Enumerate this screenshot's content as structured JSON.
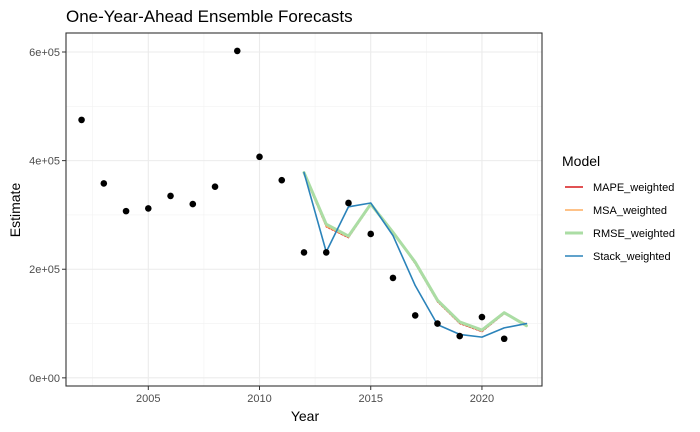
{
  "chart_data": {
    "type": "line",
    "title": "One-Year-Ahead Ensemble Forecasts",
    "xlabel": "Year",
    "ylabel": "Estimate",
    "xlim": [
      2001.3,
      2022.7
    ],
    "ylim": [
      -15000,
      635000
    ],
    "x_ticks": [
      2005,
      2010,
      2015,
      2020
    ],
    "x_tick_labels": [
      "2005",
      "2010",
      "2015",
      "2020"
    ],
    "y_ticks": [
      0,
      200000,
      400000,
      600000
    ],
    "y_tick_labels": [
      "0e+00",
      "2e+05",
      "4e+05",
      "6e+05"
    ],
    "grid": true,
    "legend_title": "Model",
    "legend_position": "right",
    "observed": {
      "x": [
        2002,
        2003,
        2004,
        2005,
        2006,
        2007,
        2008,
        2009,
        2010,
        2011,
        2012,
        2013,
        2014,
        2015,
        2016,
        2017,
        2018,
        2019,
        2020,
        2021
      ],
      "y": [
        475000,
        358000,
        307000,
        312000,
        335000,
        320000,
        352000,
        602000,
        407000,
        364000,
        231000,
        231000,
        322000,
        265000,
        184000,
        115000,
        100000,
        77000,
        112000,
        72000
      ]
    },
    "series": [
      {
        "name": "MAPE_weighted",
        "color": "#d7191c",
        "width": 1.2,
        "dash": "2,1.5",
        "x": [
          2012,
          2013,
          2014,
          2015,
          2016,
          2017,
          2018,
          2019,
          2020,
          2021,
          2022
        ],
        "y": [
          375000,
          278000,
          258000,
          318000,
          268000,
          210000,
          140000,
          100000,
          85000,
          118000,
          98000
        ]
      },
      {
        "name": "MSA_weighted",
        "color": "#fdae61",
        "width": 1.3,
        "dash": "",
        "x": [
          2012,
          2013,
          2014,
          2015,
          2016,
          2017,
          2018,
          2019,
          2020,
          2021,
          2022
        ],
        "y": [
          375000,
          279000,
          259000,
          318000,
          269000,
          211000,
          141000,
          101000,
          86000,
          119000,
          99000
        ]
      },
      {
        "name": "RMSE_weighted",
        "color": "#abdda4",
        "width": 3,
        "dash": "",
        "x": [
          2012,
          2013,
          2014,
          2015,
          2016,
          2017,
          2018,
          2019,
          2020,
          2021,
          2022
        ],
        "y": [
          378000,
          283000,
          261000,
          320000,
          268000,
          213000,
          143000,
          103000,
          88000,
          120000,
          96000
        ]
      },
      {
        "name": "Stack_weighted",
        "color": "#2b83ba",
        "width": 1.6,
        "dash": "",
        "x": [
          2012,
          2013,
          2014,
          2015,
          2016,
          2017,
          2018,
          2019,
          2020,
          2021,
          2022
        ],
        "y": [
          378000,
          232000,
          315000,
          322000,
          262000,
          170000,
          98000,
          80000,
          75000,
          92000,
          100000
        ]
      }
    ]
  }
}
